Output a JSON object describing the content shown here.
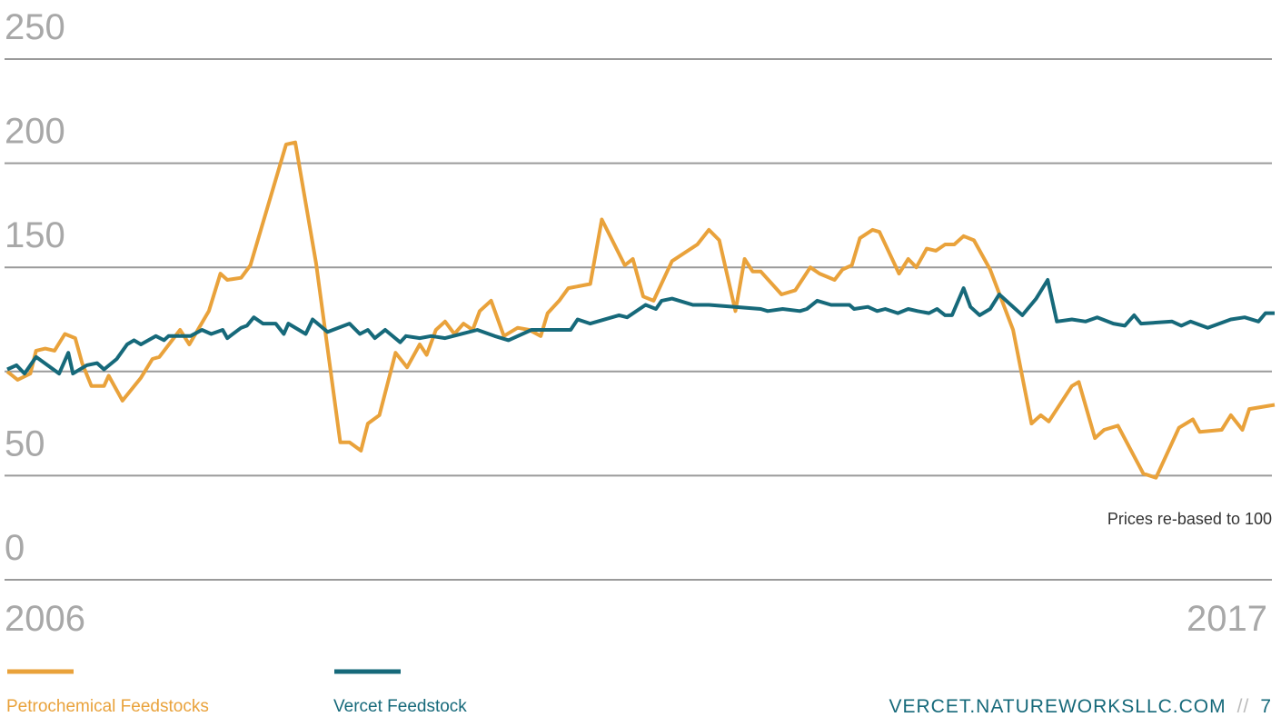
{
  "chart_data": {
    "type": "line",
    "annotation": "Prices re-based to 100",
    "xlim": [
      2006,
      2017
    ],
    "xticks": [
      2006,
      2017
    ],
    "ylim": [
      0,
      250
    ],
    "yticks": [
      0,
      50,
      {
        "value": 100,
        "label": null
      },
      150,
      200,
      250
    ],
    "grid": true,
    "legend": "bottom-left",
    "footer": {
      "site": "VERCET.NATUREWORKSLLC.COM",
      "separator": "//",
      "page": "7"
    },
    "series": [
      {
        "name": "Petrochemical Feedstocks",
        "color": "#e9a23b",
        "x": [
          2006.0,
          2006.09,
          2006.2,
          2006.25,
          2006.33,
          2006.41,
          2006.5,
          2006.59,
          2006.65,
          2006.73,
          2006.84,
          2006.88,
          2007.0,
          2007.16,
          2007.26,
          2007.32,
          2007.5,
          2007.58,
          2007.75,
          2007.85,
          2007.91,
          2008.03,
          2008.11,
          2008.42,
          2008.5,
          2008.68,
          2008.89,
          2008.97,
          2009.07,
          2009.13,
          2009.23,
          2009.37,
          2009.47,
          2009.58,
          2009.64,
          2009.72,
          2009.8,
          2009.88,
          2009.96,
          2010.04,
          2010.1,
          2010.2,
          2010.31,
          2010.43,
          2010.53,
          2010.63,
          2010.69,
          2010.79,
          2010.87,
          2011.06,
          2011.16,
          2011.36,
          2011.43,
          2011.52,
          2011.61,
          2011.77,
          2011.99,
          2012.09,
          2012.18,
          2012.32,
          2012.4,
          2012.47,
          2012.54,
          2012.72,
          2012.84,
          2012.97,
          2013.05,
          2013.18,
          2013.25,
          2013.33,
          2013.4,
          2013.51,
          2013.57,
          2013.74,
          2013.82,
          2013.89,
          2013.98,
          2014.06,
          2014.14,
          2014.22,
          2014.3,
          2014.39,
          2014.53,
          2014.73,
          2014.89,
          2014.97,
          2015.04,
          2015.24,
          2015.3,
          2015.44,
          2015.52,
          2015.64,
          2015.86,
          2015.97,
          2016.17,
          2016.29,
          2016.35,
          2016.54,
          2016.62,
          2016.72,
          2016.78,
          2017.0
        ],
        "values": [
          100,
          96,
          99,
          110,
          111,
          110,
          118,
          116,
          104,
          93,
          93,
          98,
          86,
          97,
          106,
          107,
          120,
          113,
          129,
          147,
          144,
          145,
          151,
          209,
          210,
          152,
          66,
          66,
          62,
          75,
          79,
          109,
          102,
          113,
          108,
          120,
          124,
          118,
          123,
          120,
          129,
          134,
          117,
          121,
          120,
          117,
          128,
          134,
          140,
          142,
          173,
          151,
          154,
          136,
          134,
          153,
          161,
          168,
          163,
          129,
          154,
          148,
          148,
          137,
          139,
          150,
          147,
          144,
          149,
          151,
          164,
          168,
          167,
          147,
          154,
          150,
          159,
          158,
          161,
          161,
          165,
          163,
          149,
          120,
          75,
          79,
          76,
          93,
          95,
          68,
          72,
          74,
          51,
          49,
          73,
          77,
          71,
          72,
          79,
          72,
          82,
          84
        ]
      },
      {
        "name": "Vercet Feedstock",
        "color": "#16697a",
        "x": [
          2006.0,
          2006.08,
          2006.15,
          2006.25,
          2006.45,
          2006.53,
          2006.57,
          2006.69,
          2006.78,
          2006.84,
          2006.95,
          2007.04,
          2007.1,
          2007.16,
          2007.29,
          2007.36,
          2007.4,
          2007.59,
          2007.69,
          2007.77,
          2007.87,
          2007.91,
          2008.03,
          2008.08,
          2008.14,
          2008.22,
          2008.33,
          2008.4,
          2008.44,
          2008.59,
          2008.65,
          2008.78,
          2008.97,
          2009.06,
          2009.13,
          2009.19,
          2009.28,
          2009.41,
          2009.46,
          2009.58,
          2009.68,
          2009.8,
          2010.08,
          2010.23,
          2010.35,
          2010.55,
          2010.89,
          2010.95,
          2011.06,
          2011.31,
          2011.38,
          2011.54,
          2011.63,
          2011.68,
          2011.77,
          2011.95,
          2012.09,
          2012.54,
          2012.6,
          2012.73,
          2012.88,
          2012.94,
          2013.03,
          2013.15,
          2013.31,
          2013.35,
          2013.47,
          2013.55,
          2013.62,
          2013.73,
          2013.82,
          2013.9,
          2014.0,
          2014.07,
          2014.14,
          2014.2,
          2014.3,
          2014.36,
          2014.44,
          2014.53,
          2014.61,
          2014.81,
          2014.93,
          2015.03,
          2015.11,
          2015.24,
          2015.36,
          2015.46,
          2015.6,
          2015.7,
          2015.78,
          2015.84,
          2016.11,
          2016.19,
          2016.27,
          2016.42,
          2016.62,
          2016.74,
          2016.86,
          2016.92,
          2017.0
        ],
        "values": [
          101,
          103,
          99,
          107,
          99,
          109,
          99,
          103,
          104,
          101,
          106,
          113,
          115,
          113,
          117,
          115,
          117,
          117,
          120,
          118,
          120,
          116,
          121,
          122,
          126,
          123,
          123,
          118,
          123,
          118,
          125,
          119,
          123,
          118,
          120,
          116,
          120,
          114,
          117,
          116,
          117,
          116,
          120,
          117,
          115,
          120,
          120,
          125,
          123,
          127,
          126,
          132,
          130,
          134,
          135,
          132,
          132,
          130,
          129,
          130,
          129,
          130,
          134,
          132,
          132,
          130,
          131,
          129,
          130,
          128,
          130,
          129,
          128,
          130,
          127,
          127,
          140,
          131,
          127,
          130,
          137,
          127,
          135,
          144,
          124,
          125,
          124,
          126,
          123,
          122,
          127,
          123,
          124,
          122,
          124,
          121,
          125,
          126,
          124,
          128,
          128
        ]
      }
    ]
  }
}
